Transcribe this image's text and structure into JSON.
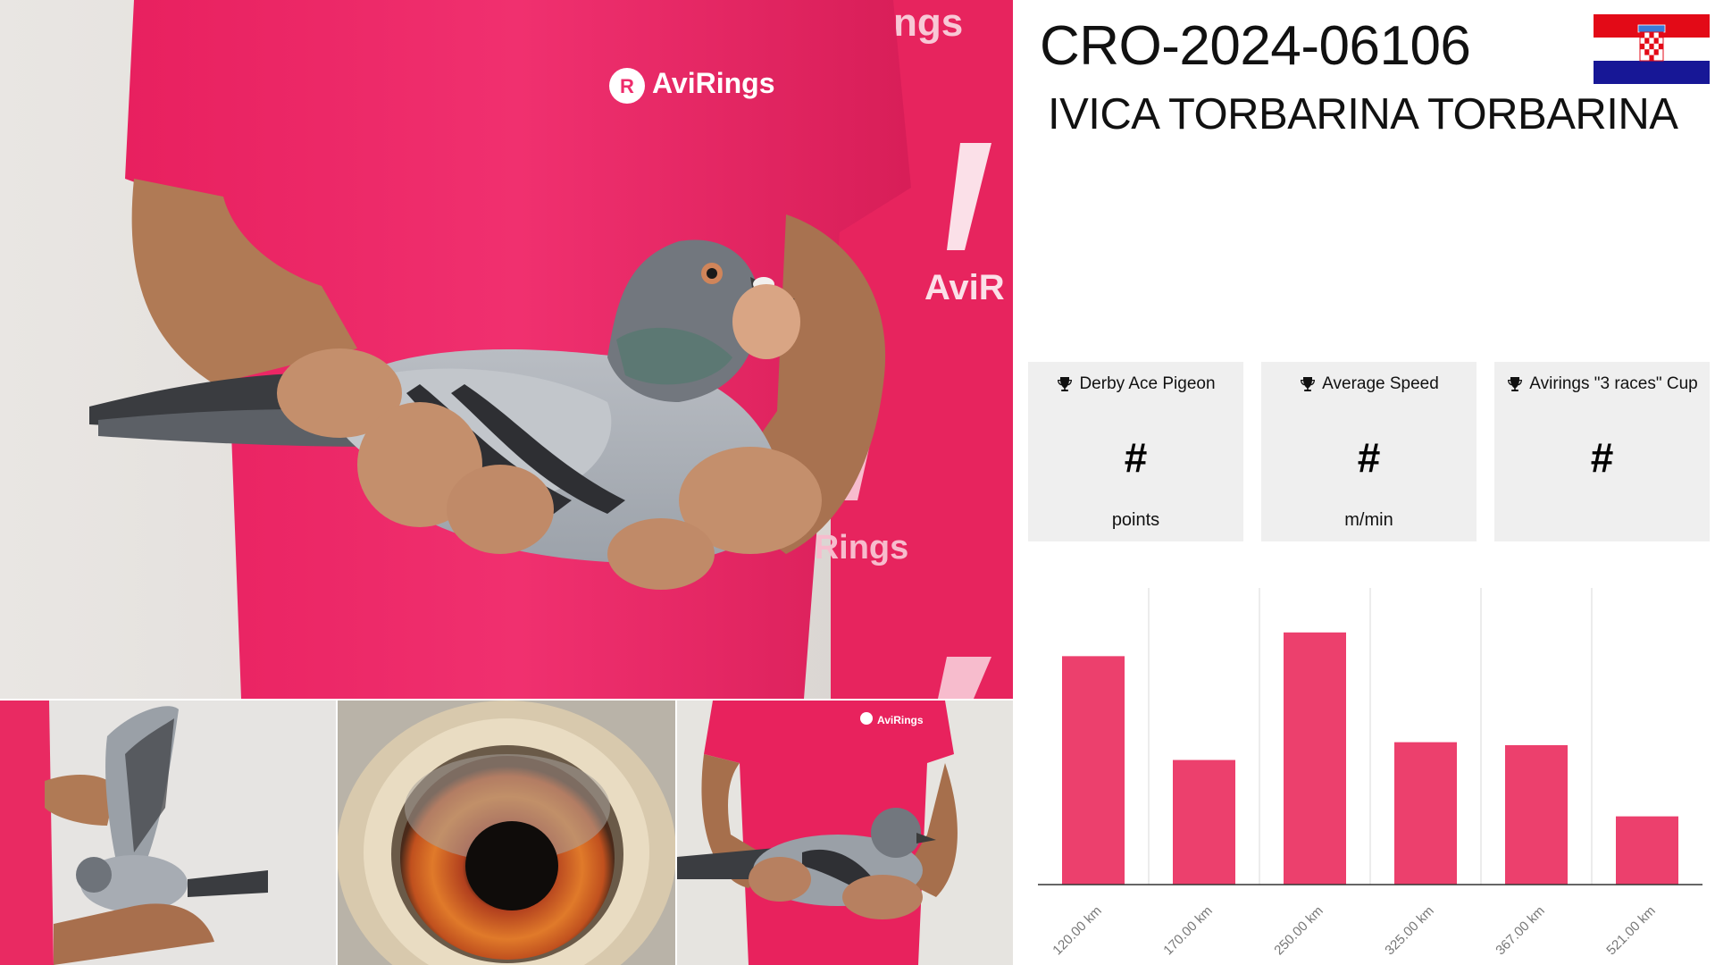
{
  "header": {
    "ring_id": "CRO-2024-06106",
    "owner_name": "IVICA TORBARINA TORBARINA",
    "flag_icon": "croatia-flag-icon"
  },
  "photos": {
    "main_alt": "pigeon held by handler in AviRings shirt",
    "main_logo_text": "AviRings",
    "small_logo_text": "AviRings"
  },
  "stats": [
    {
      "title": "Derby Ace Pigeon",
      "value": "#",
      "unit": "points",
      "icon": "trophy-icon"
    },
    {
      "title": "Average Speed",
      "value": "#",
      "unit": "m/min",
      "icon": "trophy-icon"
    },
    {
      "title": "Avirings \"3 races\" Cup",
      "value": "#",
      "unit": "",
      "icon": "trophy-icon"
    }
  ],
  "colors": {
    "bar": "#ec406d",
    "shirt": "#ee2c6c",
    "card_bg": "#efefef"
  },
  "chart_data": {
    "type": "bar",
    "categories": [
      "120.00 km",
      "170.00 km",
      "250.00 km",
      "325.00 km",
      "367.00 km",
      "521.00 km"
    ],
    "values": [
      77,
      42,
      85,
      48,
      47,
      23
    ],
    "ylim": [
      0,
      100
    ],
    "grid": true
  }
}
